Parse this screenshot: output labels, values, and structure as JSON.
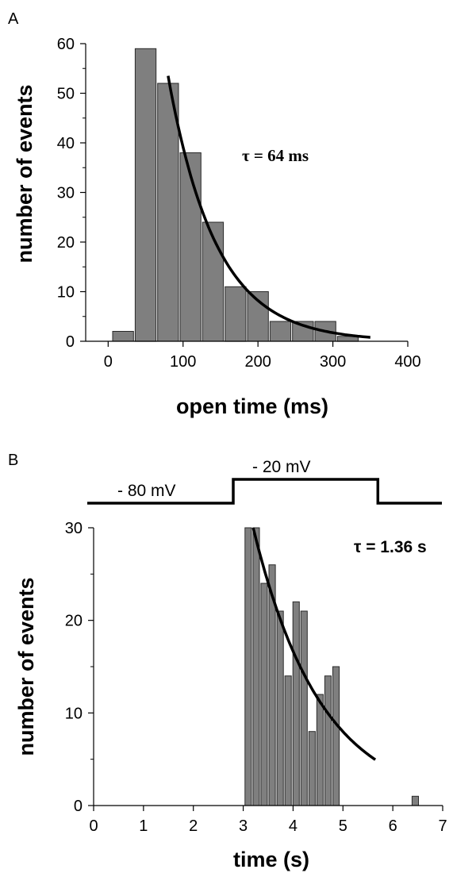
{
  "chart_data": [
    {
      "panel_label": "A",
      "type": "bar",
      "xlabel": "open time (ms)",
      "ylabel": "number of events",
      "xlim": [
        -30,
        400
      ],
      "ylim": [
        0,
        60
      ],
      "xticks": [
        0,
        100,
        200,
        300,
        400
      ],
      "yticks": [
        0,
        10,
        20,
        30,
        40,
        50,
        60
      ],
      "bin_width": 30,
      "bars": [
        {
          "x": 20,
          "y": 2
        },
        {
          "x": 50,
          "y": 59
        },
        {
          "x": 80,
          "y": 52
        },
        {
          "x": 110,
          "y": 38
        },
        {
          "x": 140,
          "y": 24
        },
        {
          "x": 170,
          "y": 11
        },
        {
          "x": 200,
          "y": 10
        },
        {
          "x": 230,
          "y": 4
        },
        {
          "x": 260,
          "y": 4
        },
        {
          "x": 290,
          "y": 4
        },
        {
          "x": 320,
          "y": 1
        }
      ],
      "fit": {
        "type": "exponential",
        "x_start": 80,
        "x_end": 350,
        "y_start": 53.5,
        "tau": 64
      },
      "annotation": "τ = 64 ms"
    },
    {
      "panel_label": "B",
      "type": "bar",
      "xlabel": "time   (s)",
      "ylabel": "number of events",
      "xlim": [
        0,
        7
      ],
      "ylim": [
        0,
        30
      ],
      "xticks": [
        0,
        1,
        2,
        3,
        4,
        5,
        6,
        7
      ],
      "yticks": [
        0,
        10,
        20,
        30
      ],
      "bin_width": 0.16,
      "bars": [
        {
          "x": 3.1,
          "y": 30
        },
        {
          "x": 3.26,
          "y": 30
        },
        {
          "x": 3.42,
          "y": 24
        },
        {
          "x": 3.58,
          "y": 26
        },
        {
          "x": 3.74,
          "y": 21
        },
        {
          "x": 3.9,
          "y": 14
        },
        {
          "x": 4.06,
          "y": 22
        },
        {
          "x": 4.22,
          "y": 21
        },
        {
          "x": 4.38,
          "y": 8
        },
        {
          "x": 4.54,
          "y": 12
        },
        {
          "x": 4.7,
          "y": 14
        },
        {
          "x": 4.86,
          "y": 15
        },
        {
          "x": 6.45,
          "y": 1
        }
      ],
      "fit": {
        "type": "exponential",
        "x_start": 3.2,
        "x_end": 5.65,
        "y_start": 30,
        "tau": 1.36
      },
      "annotation": "τ = 1.36 s",
      "protocol": {
        "labels": [
          "- 80 mV",
          "- 20 mV"
        ],
        "step_on": 2.8,
        "step_off": 5.7
      }
    }
  ]
}
